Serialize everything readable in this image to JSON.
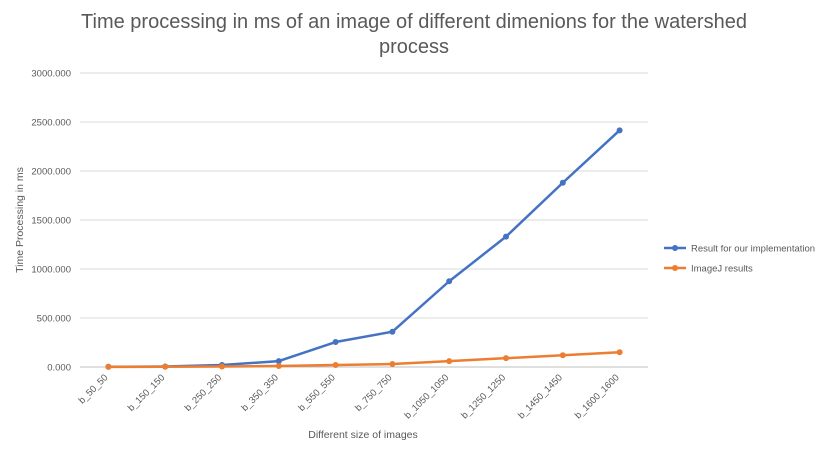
{
  "chart_data": {
    "type": "line",
    "title_lines": [
      "Time processing in ms of an image of different dimenions for the watershed",
      "process"
    ],
    "xlabel": "Different size of images",
    "ylabel": "Time Processing in ms",
    "categories": [
      "b_50_50",
      "b_150_150",
      "b_250_250",
      "b_350_350",
      "b_550_550",
      "b_750_750",
      "b_1050_1050",
      "b_1250_1250",
      "b_1450_1450",
      "b_1600_1600"
    ],
    "y_ticks": [
      "0.000",
      "500.000",
      "1000.000",
      "1500.000",
      "2000.000",
      "2500.000",
      "3000.000"
    ],
    "ylim": [
      0,
      3000
    ],
    "grid": true,
    "legend_position": "right",
    "series": [
      {
        "name": "Result for our implementation",
        "color": "#4472C4",
        "values": [
          2,
          5,
          20,
          60,
          255,
          360,
          875,
          1330,
          1880,
          2415
        ]
      },
      {
        "name": "ImageJ results",
        "color": "#ED7D31",
        "values": [
          1,
          2,
          5,
          10,
          20,
          30,
          60,
          90,
          120,
          150
        ]
      }
    ]
  }
}
